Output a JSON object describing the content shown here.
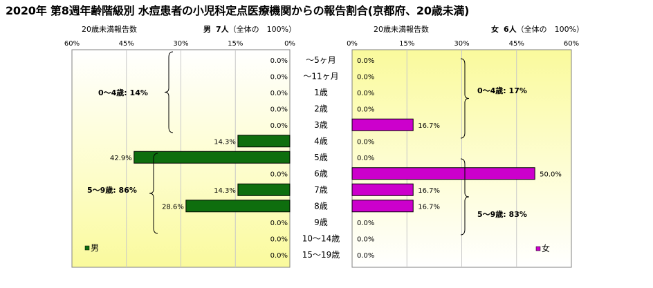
{
  "chart_data": [
    {
      "type": "bar",
      "orientation": "horizontal",
      "side": "left",
      "title": "2020年 第8週年齢階級別 水痘患者の小児科定点医療機関からの報告割合(京都府、20歳未満)",
      "axis_label": "20歳未満報告数",
      "header_gender": "男",
      "header_count": "7人",
      "header_share": "（全体の　100%）",
      "categories": [
        "～5ヶ月",
        "～11ヶ月",
        "1歳",
        "2歳",
        "3歳",
        "4歳",
        "5歳",
        "6歳",
        "7歳",
        "8歳",
        "9歳",
        "10～14歳",
        "15～19歳"
      ],
      "series": [
        {
          "name": "男",
          "values": [
            0.0,
            0.0,
            0.0,
            0.0,
            0.0,
            14.3,
            42.9,
            0.0,
            14.3,
            28.6,
            0.0,
            0.0,
            0.0
          ]
        }
      ],
      "data_labels": [
        "0.0%",
        "0.0%",
        "0.0%",
        "0.0%",
        "0.0%",
        "14.3%",
        "42.9%",
        "0.0%",
        "14.3%",
        "28.6%",
        "0.0%",
        "0.0%",
        "0.0%"
      ],
      "xlim": [
        0,
        60
      ],
      "xticks": [
        "60%",
        "45%",
        "30%",
        "15%",
        "0%"
      ],
      "group_labels": [
        {
          "text": "0～4歳: 14%",
          "from": 0,
          "to": 4
        },
        {
          "text": "5～9歳: 86%",
          "from": 6,
          "to": 10
        }
      ],
      "legend": "bottom-left",
      "bar_color": "#0e6e0e",
      "grid": true
    },
    {
      "type": "bar",
      "orientation": "horizontal",
      "side": "right",
      "axis_label": "20歳未満報告数",
      "header_gender": "女",
      "header_count": "6人",
      "header_share": "（全体の　100%）",
      "categories": [
        "～5ヶ月",
        "～11ヶ月",
        "1歳",
        "2歳",
        "3歳",
        "4歳",
        "5歳",
        "6歳",
        "7歳",
        "8歳",
        "9歳",
        "10～14歳",
        "15～19歳"
      ],
      "series": [
        {
          "name": "女",
          "values": [
            0.0,
            0.0,
            0.0,
            0.0,
            16.7,
            0.0,
            0.0,
            50.0,
            16.7,
            16.7,
            0.0,
            0.0,
            0.0
          ]
        }
      ],
      "data_labels": [
        "0.0%",
        "0.0%",
        "0.0%",
        "0.0%",
        "16.7%",
        "0.0%",
        "0.0%",
        "50.0%",
        "16.7%",
        "16.7%",
        "0.0%",
        "0.0%",
        "0.0%"
      ],
      "xlim": [
        0,
        60
      ],
      "xticks": [
        "0%",
        "15%",
        "30%",
        "45%",
        "60%"
      ],
      "group_labels": [
        {
          "text": "0～4歳: 17%",
          "from": 0,
          "to": 5
        },
        {
          "text": "5～9歳: 83%",
          "from": 6,
          "to": 10
        }
      ],
      "legend": "bottom-right",
      "bar_color": "#cc00cc",
      "grid": true
    }
  ]
}
